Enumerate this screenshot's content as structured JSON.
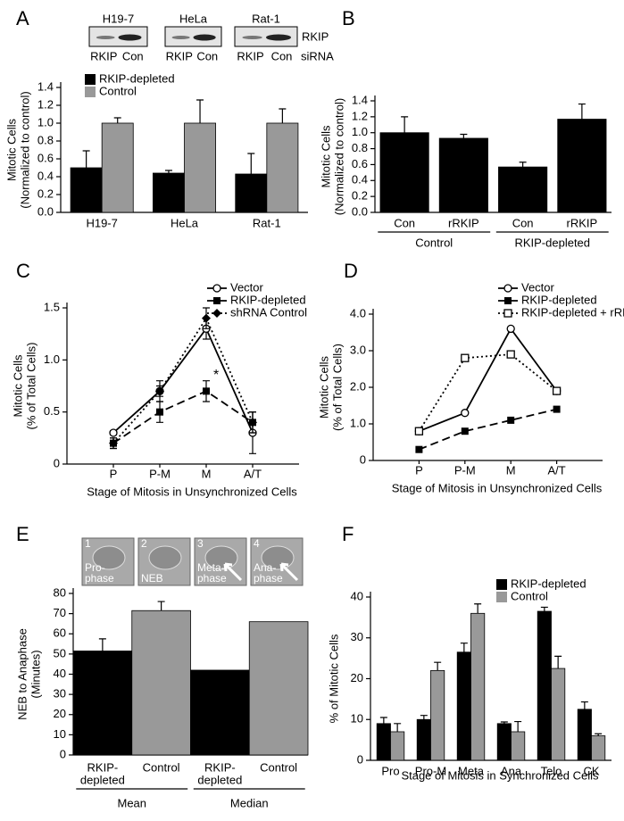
{
  "chart_data": [
    {
      "panel": "A",
      "type": "bar",
      "blot_labels": [
        "H19-7",
        "HeLa",
        "Rat-1"
      ],
      "lane_labels": [
        "RKIP",
        "Con"
      ],
      "blot_protein": "RKIP",
      "blot_note": "siRNA",
      "categories": [
        "H19-7",
        "HeLa",
        "Rat-1"
      ],
      "series": [
        {
          "name": "RKIP-depleted",
          "color": "#000000",
          "values": [
            0.5,
            0.44,
            0.43
          ],
          "errors": [
            0.19,
            0.03,
            0.23
          ]
        },
        {
          "name": "Control",
          "color": "#999999",
          "values": [
            1.0,
            1.0,
            1.0
          ],
          "errors": [
            0.06,
            0.26,
            0.16
          ]
        }
      ],
      "ylabel": [
        "Mitotic Cells",
        "(Normalized to control)"
      ],
      "ylim": [
        0,
        1.4
      ],
      "yticks": [
        {
          "value": 0,
          "label": "0.0"
        },
        0.2,
        0.4,
        0.6,
        0.8,
        {
          "value": 1,
          "label": "1.0"
        },
        1.2,
        1.4
      ]
    },
    {
      "panel": "B",
      "type": "bar",
      "categories": [
        "Con",
        "rRKIP",
        "Con",
        "rRKIP"
      ],
      "groups": [
        "Control",
        "RKIP-depleted"
      ],
      "values": [
        1.0,
        0.93,
        0.57,
        1.17
      ],
      "errors": [
        0.2,
        0.05,
        0.06,
        0.19
      ],
      "color": "#000000",
      "ylabel": [
        "Mitotic Cells",
        "(Normalized to control)"
      ],
      "ylim": [
        0,
        1.4
      ],
      "yticks": [
        {
          "value": 0,
          "label": "0.0"
        },
        0.2,
        0.4,
        0.6,
        0.8,
        {
          "value": 1,
          "label": "1.0"
        },
        1.2,
        1.4
      ]
    },
    {
      "panel": "C",
      "type": "line",
      "categories": [
        "P",
        "P-M",
        "M",
        "A/T"
      ],
      "series": [
        {
          "name": "Vector",
          "color": "#000000",
          "marker": "circle-open",
          "dash": "solid",
          "values": [
            0.3,
            0.7,
            1.3,
            0.3
          ],
          "errors": [
            0.02,
            0.1,
            0.1,
            0.2
          ]
        },
        {
          "name": "RKIP-depleted",
          "color": "#000000",
          "marker": "square",
          "dash": "dashed",
          "values": [
            0.2,
            0.5,
            0.7,
            0.4
          ],
          "errors": [
            0.05,
            0.1,
            0.1,
            0.1
          ]
        },
        {
          "name": "shRNA Control",
          "color": "#000000",
          "marker": "diamond",
          "dash": "dotted",
          "values": [
            0.2,
            0.7,
            1.4,
            0.4
          ],
          "errors": [
            0.05,
            0.05,
            0.1,
            0.1
          ]
        }
      ],
      "annotation": "*",
      "xlabel": "Stage of Mitosis in Unsynchronized Cells",
      "ylabel": [
        "Mitotic Cells",
        "(% of Total Cells)"
      ],
      "ylim": [
        0,
        1.5
      ],
      "yticks": [
        0,
        0.5,
        {
          "value": 1,
          "label": "1.0"
        },
        1.5
      ]
    },
    {
      "panel": "D",
      "type": "line",
      "categories": [
        "P",
        "P-M",
        "M",
        "A/T"
      ],
      "series": [
        {
          "name": "Vector",
          "color": "#000000",
          "marker": "circle-open",
          "dash": "solid",
          "values": [
            0.8,
            1.3,
            3.6,
            1.9
          ]
        },
        {
          "name": "RKIP-depleted",
          "color": "#000000",
          "marker": "square",
          "dash": "dashed",
          "values": [
            0.3,
            0.8,
            1.1,
            1.4
          ]
        },
        {
          "name": "RKIP-depleted + rRKIP",
          "color": "#000000",
          "marker": "square-open",
          "dash": "dotted",
          "values": [
            0.8,
            2.8,
            2.9,
            1.9
          ]
        }
      ],
      "xlabel": "Stage of Mitosis in Unsynchronized Cells",
      "ylabel": [
        "Mitotic Cells",
        "(% of Total Cells)"
      ],
      "ylim": [
        0,
        4
      ],
      "yticks": [
        0,
        {
          "value": 1,
          "label": "1.0"
        },
        {
          "value": 2,
          "label": "2.0"
        },
        {
          "value": 3,
          "label": "3.0"
        },
        {
          "value": 4,
          "label": "4.0"
        }
      ]
    },
    {
      "panel": "E",
      "type": "bar",
      "images": [
        {
          "number": "1",
          "caption": [
            "Pro-",
            "phase"
          ]
        },
        {
          "number": "2",
          "caption": [
            "NEB"
          ]
        },
        {
          "number": "3",
          "caption": [
            "Meta-",
            "phase"
          ]
        },
        {
          "number": "4",
          "caption": [
            "Ana-",
            "phase"
          ]
        }
      ],
      "categories": [
        [
          "RKIP-",
          "depleted"
        ],
        [
          "Control"
        ],
        [
          "RKIP-",
          "depleted"
        ],
        [
          "Control"
        ]
      ],
      "groups": [
        "Mean",
        "Median"
      ],
      "values": [
        51.5,
        71.5,
        42,
        66
      ],
      "errors": [
        6,
        4.5,
        null,
        null
      ],
      "colors": [
        "#000000",
        "#999999",
        "#000000",
        "#999999"
      ],
      "ylabel": [
        "NEB to Anaphase",
        "(Minutes)"
      ],
      "ylim": [
        0,
        80
      ],
      "yticks": [
        0,
        10,
        20,
        30,
        40,
        50,
        60,
        70,
        80
      ]
    },
    {
      "panel": "F",
      "type": "bar",
      "categories": [
        "Pro",
        "Pro-M",
        "Meta",
        "Ana",
        "Telo",
        "CK"
      ],
      "series": [
        {
          "name": "RKIP-depleted",
          "color": "#000000",
          "values": [
            9,
            10,
            26.5,
            9,
            36.5,
            12.5
          ],
          "errors": [
            1.5,
            1,
            2.2,
            0.4,
            1,
            1.8
          ]
        },
        {
          "name": "Control",
          "color": "#999999",
          "values": [
            7,
            22,
            36,
            7,
            22.5,
            6
          ],
          "errors": [
            2,
            2,
            2.3,
            2.5,
            3,
            0.5
          ]
        }
      ],
      "xlabel": "Stage of Mitosis in Synchronized Cells",
      "ylabel": [
        "% of Mitotic Cells"
      ],
      "ylim": [
        0,
        40
      ],
      "yticks": [
        0,
        10,
        20,
        30,
        40
      ]
    }
  ]
}
